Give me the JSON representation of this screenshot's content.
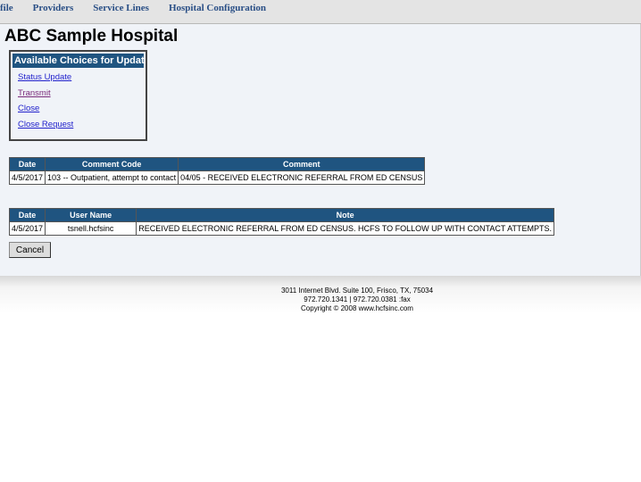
{
  "nav": [
    "file",
    "Providers",
    "Service Lines",
    "Hospital Configuration"
  ],
  "title": "ABC Sample Hospital",
  "choices": {
    "header": "Available Choices for Updates",
    "links": [
      "Status Update",
      "Transmit",
      "Close",
      "Close Request"
    ]
  },
  "comments": {
    "headers": [
      "Date",
      "Comment Code",
      "Comment"
    ],
    "rows": [
      [
        "4/5/2017",
        "103 -- Outpatient, attempt to contact",
        "04/05 - RECEIVED ELECTRONIC REFERRAL FROM ED CENSUS"
      ]
    ]
  },
  "notes": {
    "headers": [
      "Date",
      "User Name",
      "Note"
    ],
    "rows": [
      [
        "4/5/2017",
        "tsnell.hcfsinc",
        "RECEIVED ELECTRONIC REFERRAL FROM ED CENSUS. HCFS TO FOLLOW UP WITH CONTACT ATTEMPTS."
      ]
    ]
  },
  "cancel": "Cancel",
  "footer": [
    "3011 Internet Blvd. Suite 100, Frisco, TX, 75034",
    "972.720.1341 | 972.720.0381 :fax",
    "Copyright © 2008 www.hcfsinc.com"
  ],
  "colors": {
    "header": "#1f5480",
    "nav_text": "#2a4f86",
    "background": "#f0f3f8"
  }
}
